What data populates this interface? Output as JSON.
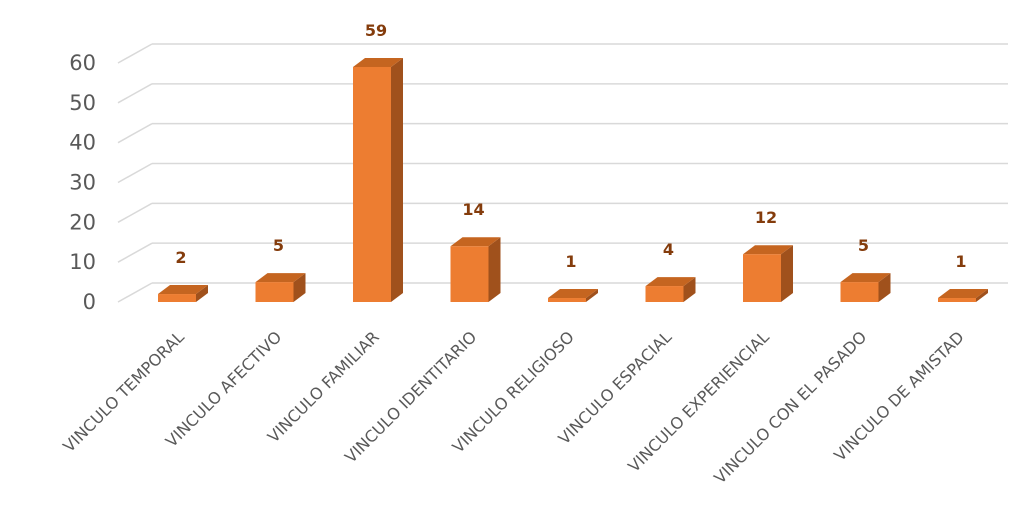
{
  "chart_data": {
    "type": "bar",
    "categories": [
      "VINCULO TEMPORAL",
      "VINCULO AFECTIVO",
      "VINCULO FAMILIAR",
      "VINCULO IDENTITARIO",
      "VINCULO RELIGIOSO",
      "VINCULO ESPACIAL",
      "VINCULO EXPERIENCIAL",
      "VINCULO CON EL PASADO",
      "VINCULO DE AMISTAD"
    ],
    "values": [
      2,
      5,
      59,
      14,
      1,
      4,
      12,
      5,
      1
    ],
    "yticks": [
      "0",
      "10",
      "20",
      "30",
      "40",
      "50",
      "60"
    ],
    "ylim": [
      0,
      60
    ],
    "grid": true,
    "legend": "none",
    "colors": {
      "bar_front": "#ed7d31",
      "bar_side": "#a0511c",
      "bar_top": "#c56520",
      "label": "#843c0c",
      "grid": "#d9d9d9"
    }
  }
}
